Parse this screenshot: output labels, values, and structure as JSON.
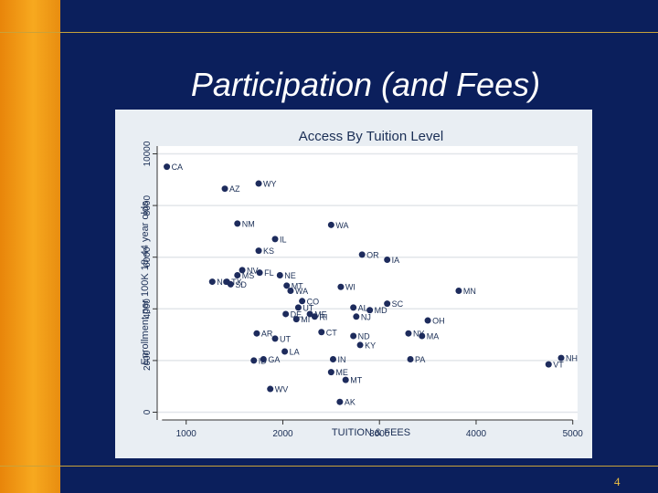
{
  "slide": {
    "title": "Participation (and Fees)",
    "page_number": "4"
  },
  "colors": {
    "background": "#0b1f5c",
    "accent_bar": "#f7a91f",
    "rule": "#c9a23a",
    "point": "#1d2b5c",
    "plot_bg": "#ffffff",
    "panel_bg": "#e9eef3"
  },
  "chart_data": {
    "type": "scatter",
    "title": "Access By Tuition Level",
    "xlabel": "TUITION & FEES",
    "ylabel": "Enrollment per 100K 18-44 year olds",
    "xlim": [
      700,
      5050
    ],
    "ylim": [
      -300,
      10300
    ],
    "xticks": [
      1000,
      2000,
      3000,
      4000,
      5000
    ],
    "yticks": [
      0,
      2000,
      4000,
      6000,
      8000,
      10000
    ],
    "grid": "horizontal",
    "points": [
      {
        "label": "CA",
        "x": 800,
        "y": 9500
      },
      {
        "label": "AZ",
        "x": 1400,
        "y": 8650
      },
      {
        "label": "WY",
        "x": 1750,
        "y": 8850
      },
      {
        "label": "NM",
        "x": 1530,
        "y": 7300
      },
      {
        "label": "WA",
        "x": 2500,
        "y": 7250
      },
      {
        "label": "IL",
        "x": 1920,
        "y": 6700
      },
      {
        "label": "KS",
        "x": 1750,
        "y": 6250
      },
      {
        "label": "OR",
        "x": 2820,
        "y": 6100
      },
      {
        "label": "IA",
        "x": 3080,
        "y": 5900
      },
      {
        "label": "NV",
        "x": 1580,
        "y": 5500
      },
      {
        "label": "MS",
        "x": 1530,
        "y": 5300
      },
      {
        "label": "FL",
        "x": 1760,
        "y": 5400
      },
      {
        "label": "NE",
        "x": 1970,
        "y": 5300
      },
      {
        "label": "NC",
        "x": 1270,
        "y": 5050
      },
      {
        "label": "TX",
        "x": 1420,
        "y": 5050
      },
      {
        "label": "SD",
        "x": 1460,
        "y": 4950
      },
      {
        "label": "MT",
        "x": 2040,
        "y": 4900
      },
      {
        "label": "WA",
        "x": 2080,
        "y": 4700
      },
      {
        "label": "WI",
        "x": 2600,
        "y": 4850
      },
      {
        "label": "MN",
        "x": 3820,
        "y": 4700
      },
      {
        "label": "CO",
        "x": 2200,
        "y": 4300
      },
      {
        "label": "UT",
        "x": 2160,
        "y": 4050
      },
      {
        "label": "AL",
        "x": 2730,
        "y": 4050
      },
      {
        "label": "MD",
        "x": 2900,
        "y": 3950
      },
      {
        "label": "SC",
        "x": 3080,
        "y": 4200
      },
      {
        "label": "DE",
        "x": 2030,
        "y": 3800
      },
      {
        "label": "ME",
        "x": 2280,
        "y": 3800
      },
      {
        "label": "RI",
        "x": 2330,
        "y": 3700
      },
      {
        "label": "MI",
        "x": 2140,
        "y": 3600
      },
      {
        "label": "NJ",
        "x": 2760,
        "y": 3700
      },
      {
        "label": "OH",
        "x": 3500,
        "y": 3550
      },
      {
        "label": "AR",
        "x": 1730,
        "y": 3050
      },
      {
        "label": "UT",
        "x": 1920,
        "y": 2850
      },
      {
        "label": "CT",
        "x": 2400,
        "y": 3100
      },
      {
        "label": "ND",
        "x": 2730,
        "y": 2950
      },
      {
        "label": "NY",
        "x": 3300,
        "y": 3050
      },
      {
        "label": "MA",
        "x": 3440,
        "y": 2950
      },
      {
        "label": "KY",
        "x": 2800,
        "y": 2600
      },
      {
        "label": "LA",
        "x": 2020,
        "y": 2350
      },
      {
        "label": "ID",
        "x": 1700,
        "y": 2000
      },
      {
        "label": "GA",
        "x": 1800,
        "y": 2050
      },
      {
        "label": "IN",
        "x": 2520,
        "y": 2050
      },
      {
        "label": "PA",
        "x": 3320,
        "y": 2050
      },
      {
        "label": "NH",
        "x": 4880,
        "y": 2100
      },
      {
        "label": "VT",
        "x": 4750,
        "y": 1850
      },
      {
        "label": "ME",
        "x": 2500,
        "y": 1550
      },
      {
        "label": "MT",
        "x": 2650,
        "y": 1250
      },
      {
        "label": "WV",
        "x": 1870,
        "y": 900
      },
      {
        "label": "AK",
        "x": 2590,
        "y": 400
      }
    ]
  }
}
